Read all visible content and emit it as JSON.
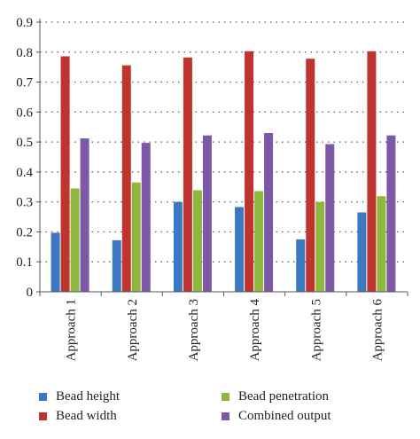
{
  "chart_data": {
    "type": "bar",
    "categories": [
      "Approach 1",
      "Approach 2",
      "Approach 3",
      "Approach 4",
      "Approach 5",
      "Approach 6"
    ],
    "series": [
      {
        "name": "Bead height",
        "color": "#3a78c2",
        "values": [
          0.197,
          0.172,
          0.3,
          0.283,
          0.175,
          0.265
        ]
      },
      {
        "name": "Bead width",
        "color": "#c0342f",
        "values": [
          0.786,
          0.756,
          0.782,
          0.803,
          0.778,
          0.803
        ]
      },
      {
        "name": "Bead penetration",
        "color": "#8db83d",
        "values": [
          0.345,
          0.365,
          0.339,
          0.336,
          0.3,
          0.319
        ]
      },
      {
        "name": "Combined output",
        "color": "#7d58a6",
        "values": [
          0.512,
          0.497,
          0.522,
          0.53,
          0.493,
          0.522
        ]
      }
    ],
    "ylim": [
      0,
      0.9
    ],
    "y_ticks": [
      "0",
      "0.1",
      "0.2",
      "0.3",
      "0.4",
      "0.5",
      "0.6",
      "0.7",
      "0.8",
      "0.9"
    ],
    "grid": "horizontal dotted",
    "legend_position": "bottom"
  }
}
